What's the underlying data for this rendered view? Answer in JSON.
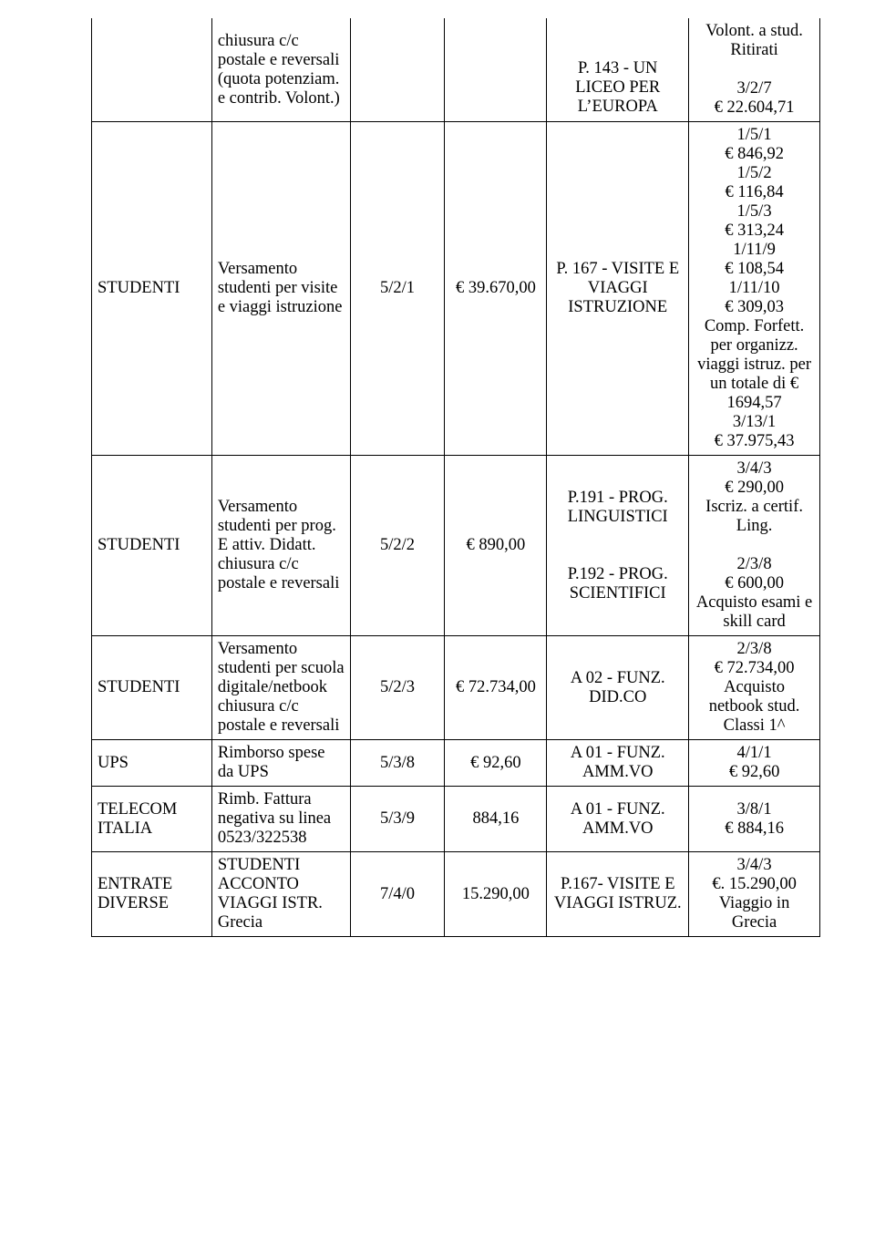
{
  "rows": [
    {
      "c0": "",
      "c1": "chiusura c/c postale e reversali (quota potenziam. e contrib. Volont.)",
      "c2": "",
      "c3": "",
      "c4": "P. 143 - UN LICEO PER L’EUROPA",
      "c5": "Volont. a stud. Ritirati\n\n3/2/7\n€ 22.604,71"
    },
    {
      "c0": "STUDENTI",
      "c1": "Versamento studenti per visite e  viaggi istruzione",
      "c2": "5/2/1",
      "c3": "€  39.670,00",
      "c4": "P. 167 - VISITE E VIAGGI ISTRUZIONE",
      "c5": "1/5/1\n€  846,92\n1/5/2\n€  116,84\n1/5/3\n€  313,24\n1/11/9\n€  108,54\n1/11/10\n€  309,03\nComp. Forfett. per organizz. viaggi istruz. per un totale di € 1694,57\n3/13/1\n€  37.975,43"
    },
    {
      "c0": "STUDENTI",
      "c1": "Versamento studenti per prog. E attiv. Didatt. chiusura c/c postale e reversali",
      "c2": "5/2/2",
      "c3": "€  890,00",
      "c4": "P.191 - PROG. LINGUISTICI\n\n\nP.192 - PROG. SCIENTIFICI",
      "c5": "3/4/3\n€ 290,00\nIscriz. a certif. Ling.\n\n2/3/8\n€ 600,00 Acquisto esami e skill card"
    },
    {
      "c0": "STUDENTI",
      "c1": "Versamento studenti per scuola digitale/netbook chiusura c/c postale e reversali",
      "c2": "5/2/3",
      "c3": "€  72.734,00",
      "c4": "A 02 - FUNZ. DID.CO",
      "c5": "2/3/8\n€ 72.734,00 Acquisto netbook stud. Classi 1^"
    },
    {
      "c0": "UPS",
      "c1": "Rimborso spese da UPS",
      "c2": "5/3/8",
      "c3": "€  92,60",
      "c4": "A 01 - FUNZ. AMM.VO",
      "c5": "4/1/1\n€  92,60"
    },
    {
      "c0": "TELECOM ITALIA",
      "c1": "Rimb. Fattura negativa su linea 0523/322538",
      "c2": "5/3/9",
      "c3": "884,16",
      "c4": "A 01 - FUNZ. AMM.VO",
      "c5": "3/8/1\n€  884,16"
    },
    {
      "c0": "ENTRATE DIVERSE",
      "c1": "STUDENTI ACCONTO VIAGGI  ISTR. Grecia",
      "c2": "7/4/0",
      "c3": "15.290,00",
      "c4": "P.167- VISITE E VIAGGI ISTRUZ.",
      "c5": "3/4/3\n€. 15.290,00 Viaggio in Grecia"
    }
  ]
}
